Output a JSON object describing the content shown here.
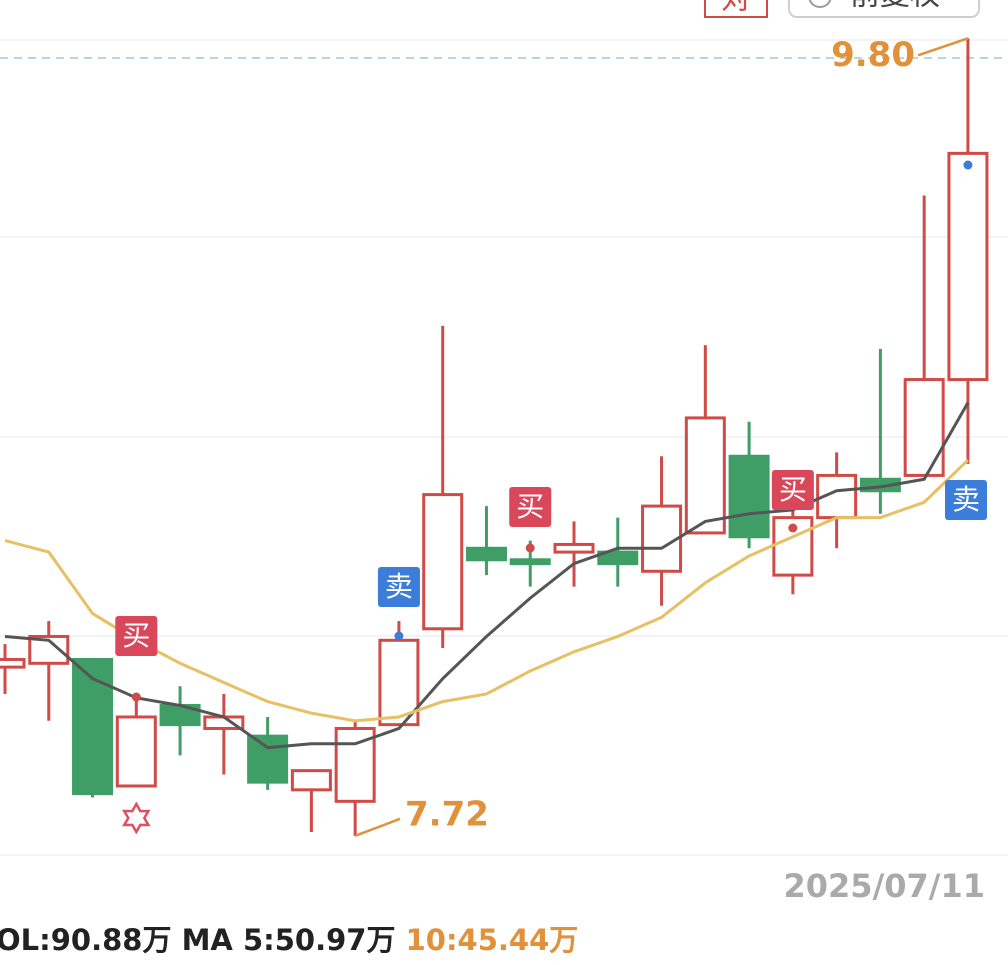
{
  "chart_data": {
    "type": "candlestick",
    "open": [
      8.16,
      8.17,
      8.18,
      7.85,
      8.06,
      8.0,
      7.98,
      7.84,
      7.81,
      8.01,
      8.26,
      8.47,
      8.44,
      8.46,
      8.46,
      8.41,
      8.51,
      8.71,
      8.4,
      8.55,
      8.65,
      8.66,
      8.91
    ],
    "high": [
      8.22,
      8.28,
      8.18,
      8.09,
      8.11,
      8.09,
      8.03,
      7.89,
      8.02,
      8.28,
      9.05,
      8.58,
      8.49,
      8.54,
      8.55,
      8.71,
      9.0,
      8.8,
      8.58,
      8.72,
      8.99,
      9.39,
      9.8
    ],
    "low": [
      8.09,
      8.02,
      7.82,
      7.85,
      7.93,
      7.88,
      7.84,
      7.73,
      7.72,
      8.01,
      8.21,
      8.4,
      8.37,
      8.37,
      8.37,
      8.32,
      8.51,
      8.47,
      8.35,
      8.47,
      8.56,
      8.66,
      8.69
    ],
    "close": [
      8.18,
      8.24,
      7.83,
      8.03,
      8.01,
      8.03,
      7.86,
      7.89,
      8.0,
      8.23,
      8.61,
      8.44,
      8.43,
      8.48,
      8.43,
      8.58,
      8.81,
      8.5,
      8.55,
      8.66,
      8.62,
      8.91,
      9.5
    ],
    "up_color": "#d04a47",
    "down_color": "#3f9e66",
    "lines": [
      {
        "color": "#555555",
        "values": [
          8.24,
          8.23,
          8.13,
          8.08,
          8.06,
          8.03,
          7.95,
          7.96,
          7.96,
          8.0,
          8.13,
          8.24,
          8.34,
          8.43,
          8.47,
          8.47,
          8.54,
          8.56,
          8.57,
          8.62,
          8.63,
          8.65,
          8.85
        ]
      },
      {
        "color": "#e8c064",
        "values": [
          8.49,
          8.46,
          8.3,
          8.23,
          8.17,
          8.12,
          8.07,
          8.04,
          8.02,
          8.03,
          8.07,
          8.09,
          8.15,
          8.2,
          8.24,
          8.29,
          8.38,
          8.45,
          8.5,
          8.55,
          8.55,
          8.59,
          8.7
        ]
      }
    ],
    "ylim": [
      7.67,
      9.9
    ],
    "high_label": {
      "value": 9.8,
      "label": "9.80"
    },
    "low_label": 7.72,
    "signals": [
      "买",
      "卖",
      "买",
      "买",
      "卖"
    ],
    "date_label": "2025/07/11",
    "volume_text": [
      "OL:90.88万",
      "MA 5:50.97万",
      "10:45.44万"
    ],
    "top_buttons": [
      "对",
      "前复权"
    ]
  }
}
